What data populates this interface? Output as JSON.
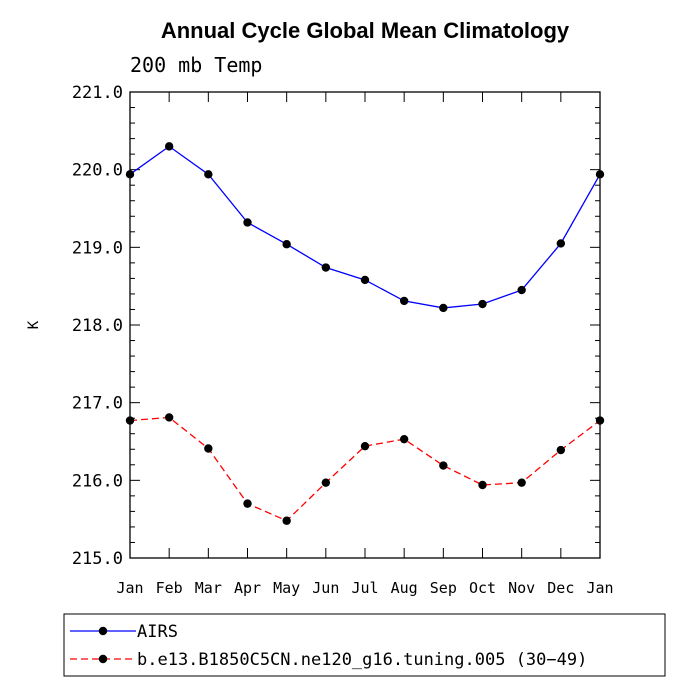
{
  "chart_data": {
    "type": "line",
    "title": "Annual Cycle Global Mean Climatology",
    "subtitle": "200 mb Temp",
    "xlabel": "",
    "ylabel": "K",
    "categories": [
      "Jan",
      "Feb",
      "Mar",
      "Apr",
      "May",
      "Jun",
      "Jul",
      "Aug",
      "Sep",
      "Oct",
      "Nov",
      "Dec",
      "Jan"
    ],
    "ylim": [
      215.0,
      221.0
    ],
    "yticks": [
      "215.0",
      "216.0",
      "217.0",
      "218.0",
      "219.0",
      "220.0",
      "221.0"
    ],
    "series": [
      {
        "name": "AIRS",
        "color": "#0000ff",
        "style": "solid",
        "values": [
          219.94,
          220.3,
          219.94,
          219.32,
          219.04,
          218.74,
          218.58,
          218.31,
          218.22,
          218.27,
          218.45,
          219.05,
          219.94
        ]
      },
      {
        "name": "b.e13.B1850C5CN.ne120_g16.tuning.005 (30−49)",
        "color": "#ff0000",
        "style": "dashed",
        "values": [
          216.77,
          216.81,
          216.41,
          215.7,
          215.48,
          215.97,
          216.44,
          216.53,
          216.19,
          215.94,
          215.97,
          216.39,
          216.77
        ]
      }
    ]
  }
}
